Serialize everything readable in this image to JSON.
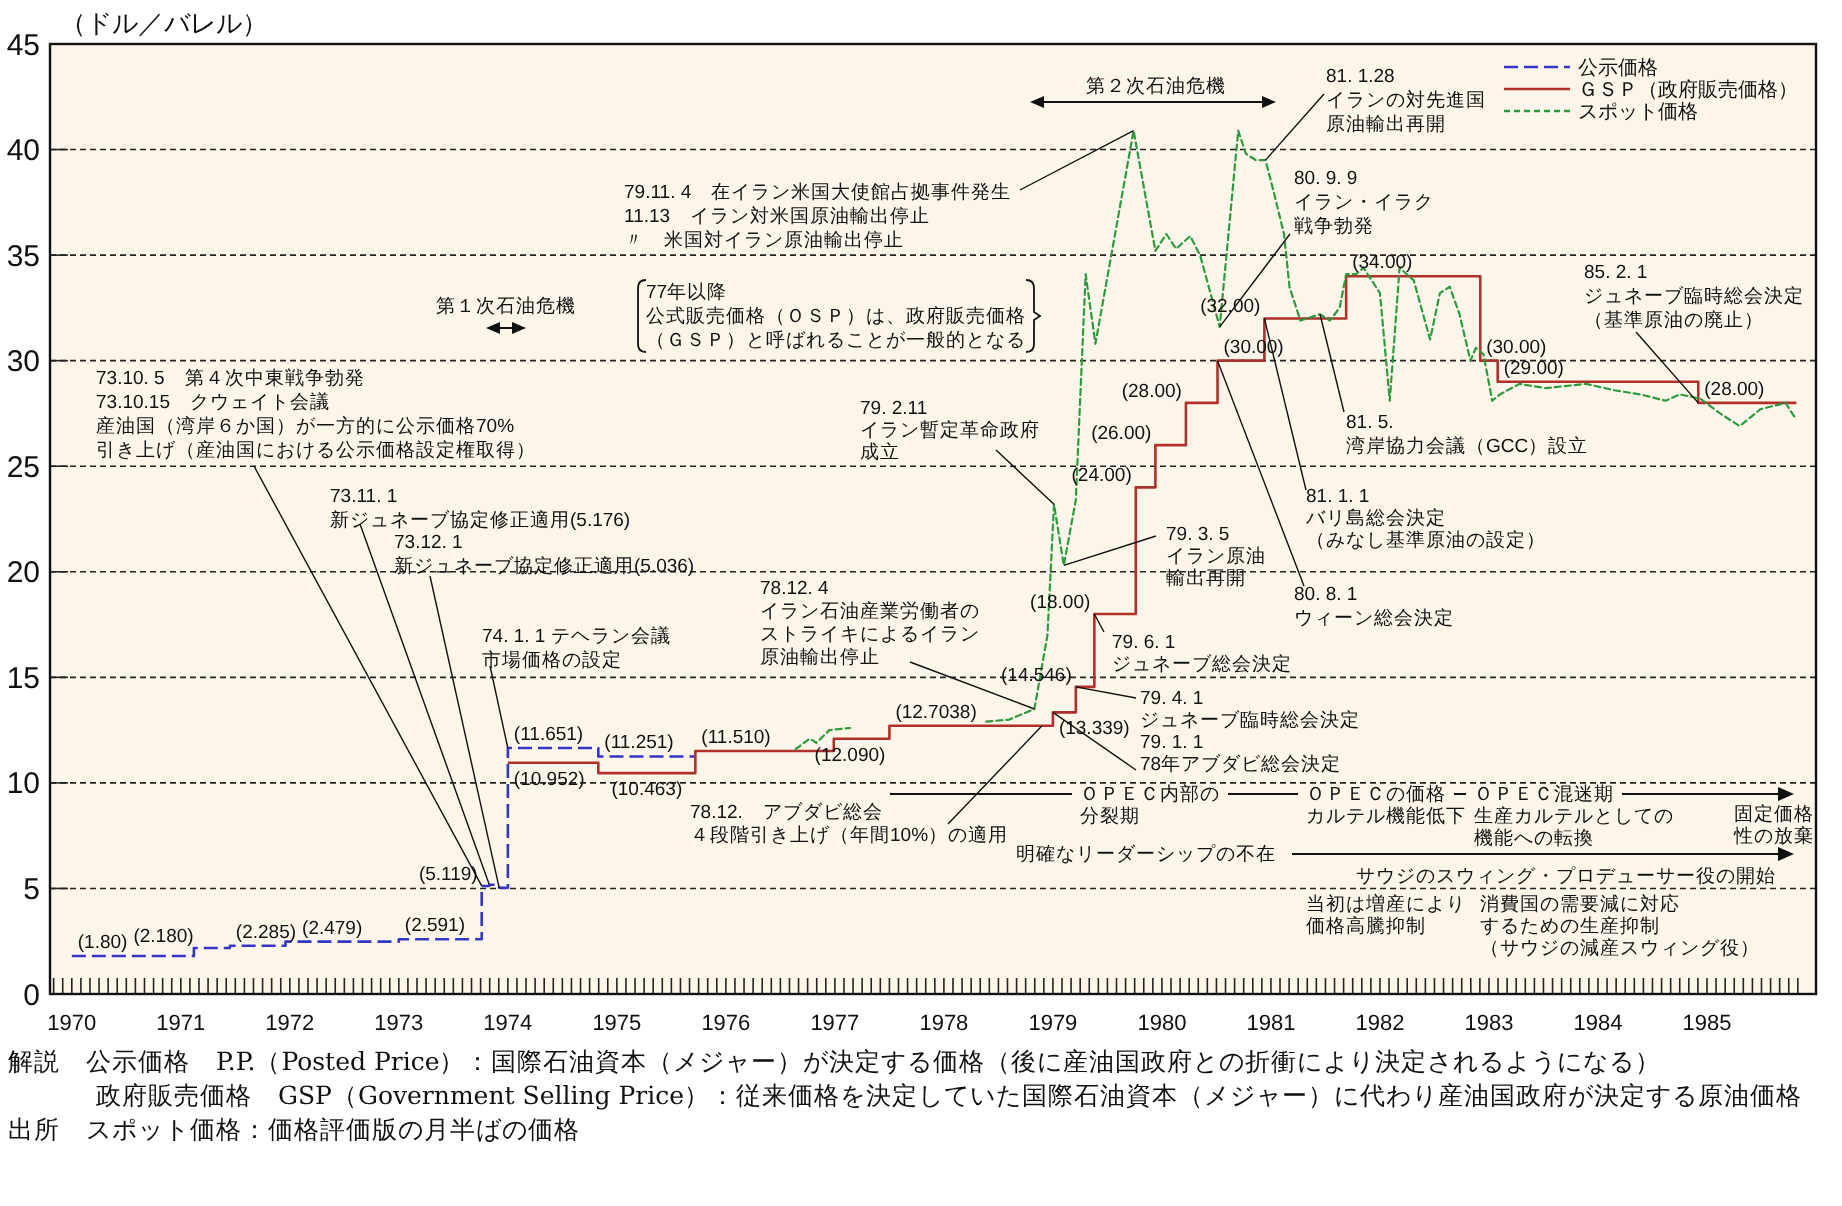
{
  "chart_data": {
    "type": "line",
    "ylabel": "（ドル／バレル）",
    "xlim": [
      1969.8,
      1986
    ],
    "ylim": [
      0,
      45
    ],
    "xticks": [
      1970,
      1971,
      1972,
      1973,
      1974,
      1975,
      1976,
      1977,
      1978,
      1979,
      1980,
      1981,
      1982,
      1983,
      1984,
      1985
    ],
    "yticks": [
      0,
      5,
      10,
      15,
      20,
      25,
      30,
      35,
      40,
      45
    ],
    "grid": "y",
    "legend": "top right",
    "series": [
      {
        "name": "公示価格",
        "type": "step",
        "color": "#3535c8",
        "line_style": "dashed",
        "x": [
          1970.0,
          1971.12,
          1971.45,
          1971.96,
          1973.0,
          1973.76,
          1973.83,
          1973.92,
          1974.0,
          1974.83,
          1975.72
        ],
        "values": [
          1.8,
          2.18,
          2.285,
          2.479,
          2.591,
          5.119,
          5.176,
          5.036,
          11.651,
          11.251,
          11.251
        ],
        "value_labels": [
          "(1.80)",
          "(2.180)",
          "(2.285)",
          "(2.479)",
          "(2.591)",
          "(5.119)",
          null,
          null,
          "(11.651)",
          "(11.251)",
          null
        ]
      },
      {
        "name": "ＧＳＰ（政府販売価格）",
        "type": "step",
        "color": "#b0302a",
        "line_style": "solid",
        "x": [
          1974.0,
          1974.83,
          1975.72,
          1976.99,
          1977.5,
          1979.0,
          1979.21,
          1979.38,
          1979.76,
          1979.94,
          1980.22,
          1980.51,
          1980.94,
          1981.69,
          1982.92,
          1983.08,
          1984.92,
          1985.82
        ],
        "values": [
          10.952,
          10.463,
          11.51,
          12.09,
          12.7038,
          13.339,
          14.546,
          18.0,
          24.0,
          26.0,
          28.0,
          30.0,
          32.0,
          34.0,
          30.0,
          29.0,
          28.0,
          28.0
        ],
        "value_labels": [
          "(10.952)",
          "(10.463)",
          "(11.510)",
          "(12.090)",
          "(12.7038)",
          "(13.339)",
          "(14.546)",
          "(18.00)",
          "(24.00)",
          "(26.00)",
          "(28.00)",
          "(30.00)",
          "(32.00)",
          "(34.00)",
          "(30.00)",
          "(29.00)",
          "(28.00)",
          null
        ]
      },
      {
        "name": "スポット価格",
        "type": "line",
        "color": "#2e9a3e",
        "line_style": "dotted",
        "x": [
          1978.39,
          1978.6,
          1978.83,
          1978.95,
          1979.01,
          1979.1,
          1979.21,
          1979.3,
          1979.39,
          1979.74,
          1979.94,
          1980.04,
          1980.13,
          1980.26,
          1980.35,
          1980.53,
          1980.7,
          1980.77,
          1980.86,
          1980.95,
          1981.03,
          1981.12,
          1981.17,
          1981.27,
          1981.45,
          1981.54,
          1981.63,
          1981.69,
          1981.78,
          1981.85,
          1982.0,
          1982.09,
          1982.18,
          1982.31,
          1982.46,
          1982.55,
          1982.64,
          1982.73,
          1982.83,
          1982.88,
          1982.95,
          1983.03,
          1983.1,
          1983.28,
          1983.52,
          1983.89,
          1984.15,
          1984.39,
          1984.62,
          1984.75,
          1984.94,
          1985.12,
          1985.3,
          1985.49,
          1985.72,
          1985.82
        ],
        "values": [
          12.9,
          13.0,
          13.5,
          17.0,
          23.2,
          20.3,
          23.4,
          34.1,
          30.8,
          40.9,
          35.2,
          36.0,
          35.3,
          35.9,
          35.0,
          31.6,
          40.9,
          39.8,
          39.5,
          39.5,
          37.9,
          36.0,
          33.5,
          31.9,
          32.2,
          31.9,
          32.5,
          34.1,
          34.1,
          34.4,
          33.2,
          28.1,
          34.4,
          33.8,
          31.0,
          33.2,
          33.5,
          32.2,
          30.0,
          30.6,
          30.3,
          28.1,
          28.4,
          28.9,
          28.7,
          28.9,
          28.6,
          28.4,
          28.1,
          28.4,
          28.2,
          27.5,
          26.9,
          27.7,
          28.0,
          27.2
        ]
      },
      {
        "type": "line",
        "color": "#2e9a3e",
        "line_style": "dotted",
        "x": [
          1976.64,
          1976.77,
          1976.83,
          1976.95,
          1977.14
        ],
        "values": [
          11.6,
          12.1,
          11.9,
          12.5,
          12.6
        ]
      }
    ],
    "annotations": [
      {
        "text": "73.10. 5　第４次中東戦争勃発73.10.15　クウェイト会議産油国（湾岸６か国）が一方的に公示価格70%引き上げ（産油国における公示価格設定権取得）",
        "x": 1973.76,
        "y": 5.119
      },
      {
        "text": "73.11. 1新ジュネーブ協定修正適用(5.176)",
        "x": 1973.83,
        "y": 5.176
      },
      {
        "text": "73.12. 1新ジュネーブ協定修正適用(5.036)",
        "x": 1973.92,
        "y": 5.036
      },
      {
        "text": "74. 1. 1 テヘラン会議市場価格の設定",
        "x": 1974.0,
        "y": 11.651
      },
      "第１次石油危機",
      "77年以降公式販売価格（ＯＳＰ）は、政府販売価格（ＧＳＰ）と呼ばれることが一般的となる",
      {
        "text": "79.11. 4　在イラン米国大使館占拠事件発生11.13　イラン対米国原油輸出停止〃　米国対イラン原油輸出停止",
        "x": 1979.74,
        "y": 40.9
      },
      "第２次石油危機",
      {
        "text": "81. 1.28イランの対先進国原油輸出再開",
        "x": 1980.95,
        "y": 39.5
      },
      {
        "text": "80. 9. 9イラン・イラク戦争勃発",
        "x": 1980.53,
        "y": 31.6
      },
      {
        "text": "79. 2.11イラン暫定革命政府成立",
        "x": 1979.01,
        "y": 23.2
      },
      {
        "text": "81. 5.湾岸協力会議（GCC）設立",
        "x": 1981.45,
        "y": 32.2
      },
      {
        "text": "81. 1. 1バリ島総会決定（みなし基準原油の設定）",
        "x": 1980.94,
        "y": 32.0
      },
      {
        "text": "80. 8. 1ウィーン総会決定",
        "x": 1980.51,
        "y": 30.0
      },
      {
        "text": "85. 2. 1ジュネーブ臨時総会決定（基準原油の廃止）",
        "x": 1984.92,
        "y": 28.0
      },
      {
        "text": "79. 3. 5イラン原油輸出再開",
        "x": 1979.1,
        "y": 20.3
      },
      {
        "text": "79. 6. 1ジュネーブ総会決定",
        "x": 1979.38,
        "y": 18.0
      },
      {
        "text": "79. 4. 1ジュネーブ臨時総会決定",
        "x": 1979.21,
        "y": 14.546
      },
      {
        "text": "79. 1. 1 78年アブダビ総会決定",
        "x": 1979.0,
        "y": 13.339
      },
      {
        "text": "78.12. 4イラン石油産業労働者のストライキによるイラン原油輸出停止",
        "x": 1978.83,
        "y": 13.5
      },
      {
        "text": "78.12.　アブダビ総会４段階引き上げ（年間10%）の適用",
        "x": 1978.9,
        "y": 12.7038
      },
      "ＯＰＥＣ内部の分裂期",
      "ＯＰＥＣの価格カルテル機能低下",
      "ＯＰＥＣ混迷期生産カルテルとしての機能への転換",
      "固定価格性の放棄",
      "明確なリーダーシップの不在",
      "サウジのスウィング・プロデューサー役の開始",
      "当初は増産により価格高騰抑制",
      "消費国の需要減に対応するための生産抑制（サウジの減産スウィング役）",
      "解説　公示価格　P.P.（Posted Price）：国際石油資本（メジャー）が決定する価格（後に産油国政府との折衝により決定されるようになる）",
      "政府販売価格　GSP（Government Selling Price）：従来価格を決定していた国際石油資本（メジャー）に代わり産油国政府が決定する原油価格",
      "出所　スポット価格：価格評価版の月半ばの価格"
    ]
  }
}
